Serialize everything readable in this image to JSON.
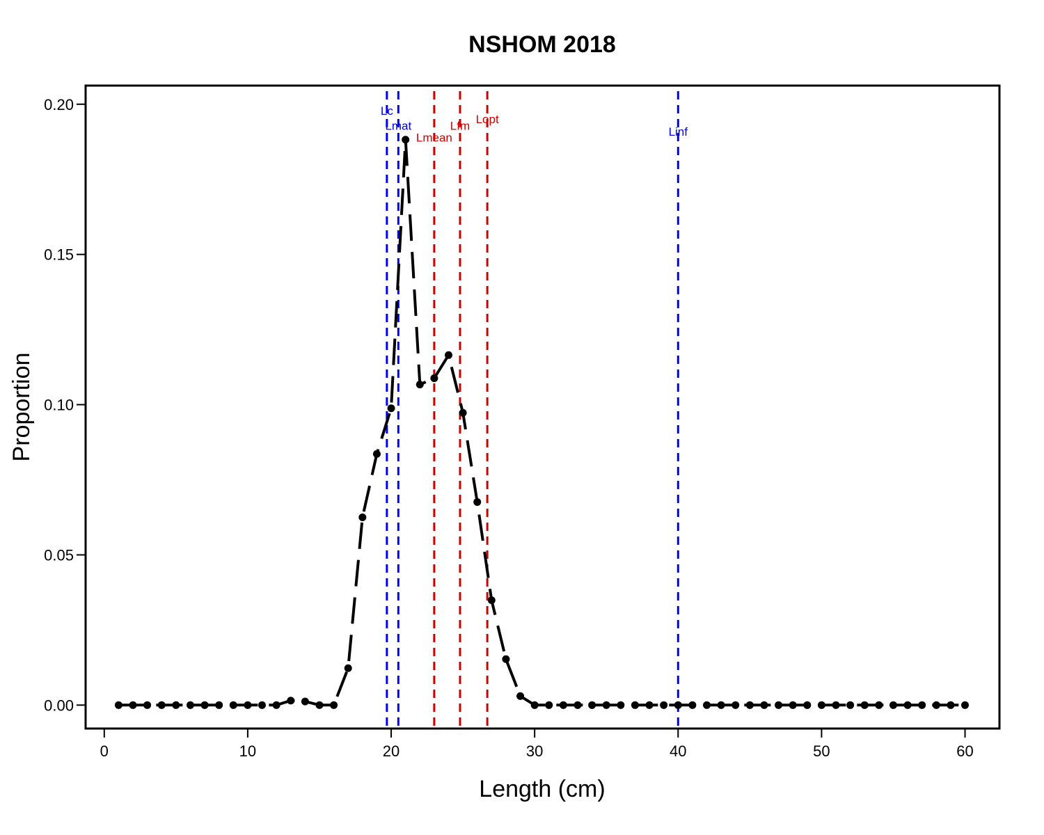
{
  "chart_data": {
    "type": "line",
    "title": "NSHOM 2018",
    "xlabel": "Length (cm)",
    "ylabel": "Proportion",
    "xlim": [
      -1.3,
      62.4
    ],
    "ylim": [
      -0.0078,
      0.2062
    ],
    "xticks": [
      0,
      10,
      20,
      30,
      40,
      50,
      60
    ],
    "xtick_labels": [
      "0",
      "10",
      "20",
      "30",
      "40",
      "50",
      "60"
    ],
    "yticks": [
      0,
      0.05,
      0.1,
      0.15,
      0.2
    ],
    "ytick_labels": [
      "0.00",
      "0.05",
      "0.10",
      "0.15",
      "0.20"
    ],
    "grid": false,
    "series": [
      {
        "line_style": "long-dash",
        "color": "#000000",
        "x": [
          1,
          2,
          3,
          4,
          5,
          6,
          7,
          8,
          9,
          10,
          11,
          12,
          13,
          14,
          15,
          16,
          17,
          18,
          19,
          20,
          21,
          22,
          23,
          24,
          25,
          26,
          27,
          28,
          29,
          30,
          31,
          32,
          33,
          34,
          35,
          36,
          37,
          38,
          39,
          40,
          41,
          42,
          43,
          44,
          45,
          46,
          47,
          48,
          49,
          50,
          51,
          52,
          53,
          54,
          55,
          56,
          57,
          58,
          59,
          60
        ],
        "y": [
          0,
          0,
          0,
          0,
          0,
          0,
          0,
          0,
          0,
          0,
          0,
          0,
          0.0015,
          0.0012,
          0,
          0,
          0.0123,
          0.0625,
          0.0836,
          0.0988,
          0.1882,
          0.1067,
          0.1088,
          0.1165,
          0.0973,
          0.0676,
          0.0349,
          0.0153,
          0.003,
          0,
          0,
          0,
          0,
          0,
          0,
          0,
          0,
          0,
          0,
          0,
          0,
          0,
          0,
          0,
          0,
          0,
          0,
          0,
          0,
          0,
          0,
          0,
          0,
          0,
          0,
          0,
          0,
          0,
          0,
          0
        ]
      }
    ],
    "reference_lines": [
      {
        "label": "Lc",
        "x": 19.7,
        "color": "#0000ee",
        "label_y": 0.1965
      },
      {
        "label": "Lmat",
        "x": 20.5,
        "color": "#0000ee",
        "label_y": 0.1915
      },
      {
        "label": "Lmean",
        "x": 23.0,
        "color": "#cd0000",
        "label_y": 0.1875
      },
      {
        "label": "Lfm",
        "x": 24.8,
        "color": "#cd0000",
        "label_y": 0.1915
      },
      {
        "label": "Lopt",
        "x": 26.7,
        "color": "#cd0000",
        "label_y": 0.1937
      },
      {
        "label": "Linf",
        "x": 40.0,
        "color": "#0000ee",
        "label_y": 0.1895
      }
    ]
  }
}
